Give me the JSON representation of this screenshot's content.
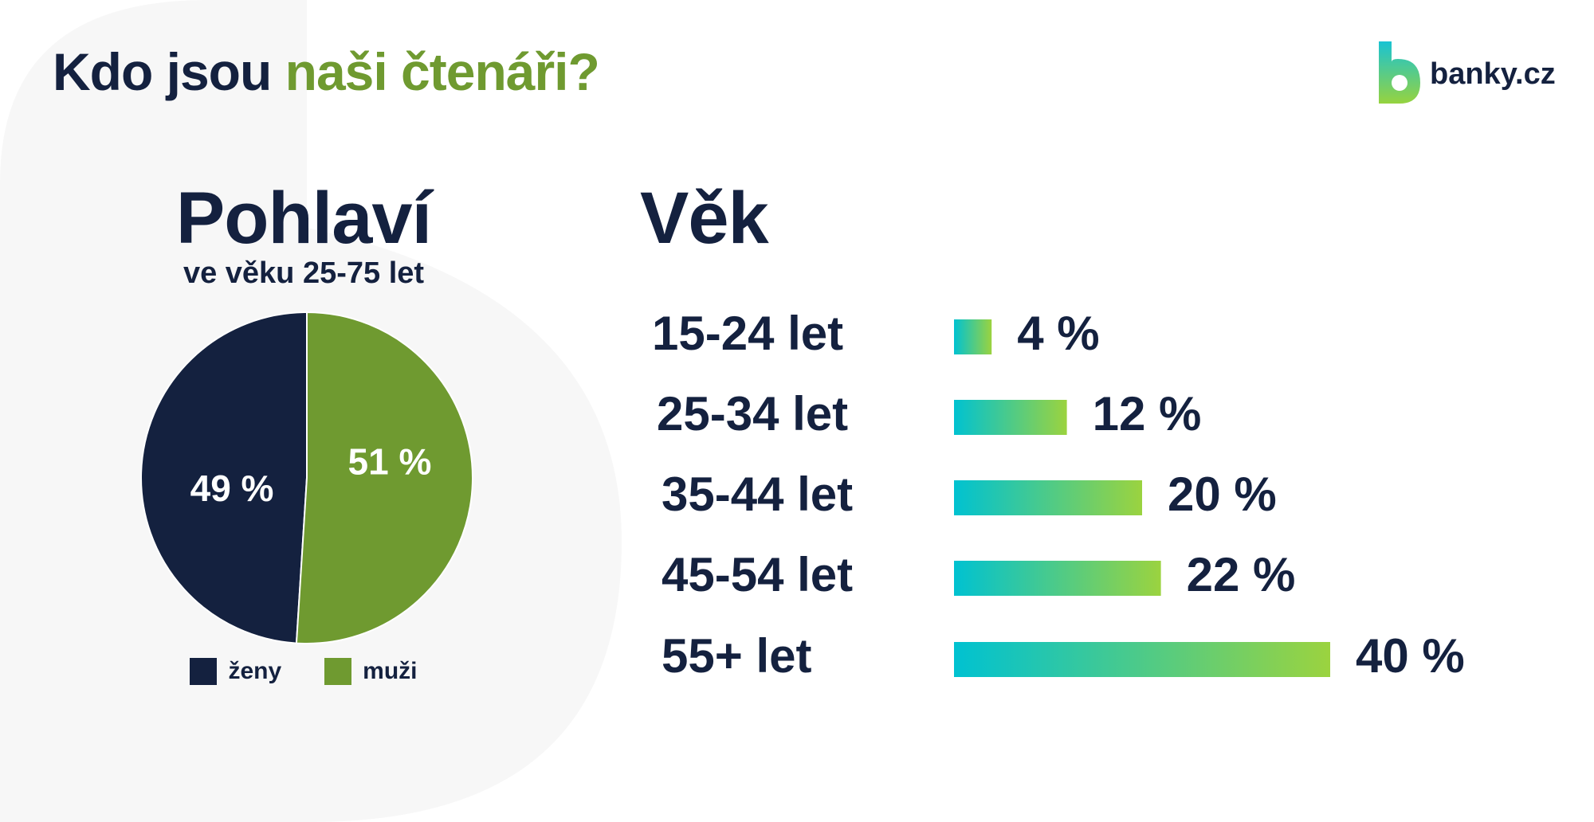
{
  "header": {
    "title_part1": "Kdo jsou ",
    "title_part2": "naši čtenáři?",
    "logo_text": "banky.cz"
  },
  "colors": {
    "navy": "#14213f",
    "green": "#6f9a30",
    "bar_gradient_start": "#00c2d1",
    "bar_gradient_end": "#9bd33f"
  },
  "chart_data": [
    {
      "type": "pie",
      "title": "Pohlaví",
      "subtitle": "ve věku 25-75 let",
      "slices": [
        {
          "name": "ženy",
          "value": 49,
          "label": "49 %",
          "color": "#14213f"
        },
        {
          "name": "muži",
          "value": 51,
          "label": "51 %",
          "color": "#6f9a30"
        }
      ],
      "legend_position": "bottom"
    },
    {
      "type": "bar",
      "orientation": "horizontal",
      "title": "Věk",
      "categories": [
        "15-24 let",
        "25-34 let",
        "35-44 let",
        "45-54 let",
        "55+ let"
      ],
      "values": [
        4,
        12,
        20,
        22,
        40
      ],
      "labels": [
        "4 %",
        "12 %",
        "20 %",
        "22 %",
        "40 %"
      ],
      "xlim": [
        0,
        40
      ],
      "grid": false
    }
  ]
}
